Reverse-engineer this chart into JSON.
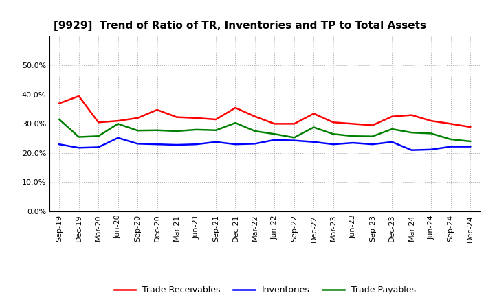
{
  "title": "[9929]  Trend of Ratio of TR, Inventories and TP to Total Assets",
  "x_labels": [
    "Sep-19",
    "Dec-19",
    "Mar-20",
    "Jun-20",
    "Sep-20",
    "Dec-20",
    "Mar-21",
    "Jun-21",
    "Sep-21",
    "Dec-21",
    "Mar-22",
    "Jun-22",
    "Sep-22",
    "Dec-22",
    "Mar-23",
    "Jun-23",
    "Sep-23",
    "Dec-23",
    "Mar-24",
    "Jun-24",
    "Sep-24",
    "Dec-24"
  ],
  "trade_receivables": [
    0.37,
    0.395,
    0.305,
    0.31,
    0.32,
    0.348,
    0.323,
    0.32,
    0.315,
    0.355,
    0.325,
    0.3,
    0.3,
    0.335,
    0.305,
    0.3,
    0.295,
    0.325,
    0.33,
    0.31,
    0.3,
    0.289
  ],
  "inventories": [
    0.23,
    0.218,
    0.22,
    0.252,
    0.232,
    0.23,
    0.228,
    0.23,
    0.238,
    0.23,
    0.232,
    0.245,
    0.243,
    0.238,
    0.23,
    0.235,
    0.23,
    0.238,
    0.21,
    0.212,
    0.222,
    0.222
  ],
  "trade_payables": [
    0.315,
    0.255,
    0.258,
    0.3,
    0.277,
    0.278,
    0.275,
    0.28,
    0.278,
    0.303,
    0.275,
    0.265,
    0.253,
    0.288,
    0.265,
    0.258,
    0.257,
    0.282,
    0.27,
    0.267,
    0.247,
    0.24
  ],
  "tr_color": "#FF0000",
  "inv_color": "#0000FF",
  "tp_color": "#008000",
  "ylim": [
    0.0,
    0.6
  ],
  "yticks": [
    0.0,
    0.1,
    0.2,
    0.3,
    0.4,
    0.5
  ],
  "background_color": "#FFFFFF",
  "grid_color": "#AAAAAA",
  "legend_labels": [
    "Trade Receivables",
    "Inventories",
    "Trade Payables"
  ],
  "title_fontsize": 11,
  "tick_fontsize": 8
}
